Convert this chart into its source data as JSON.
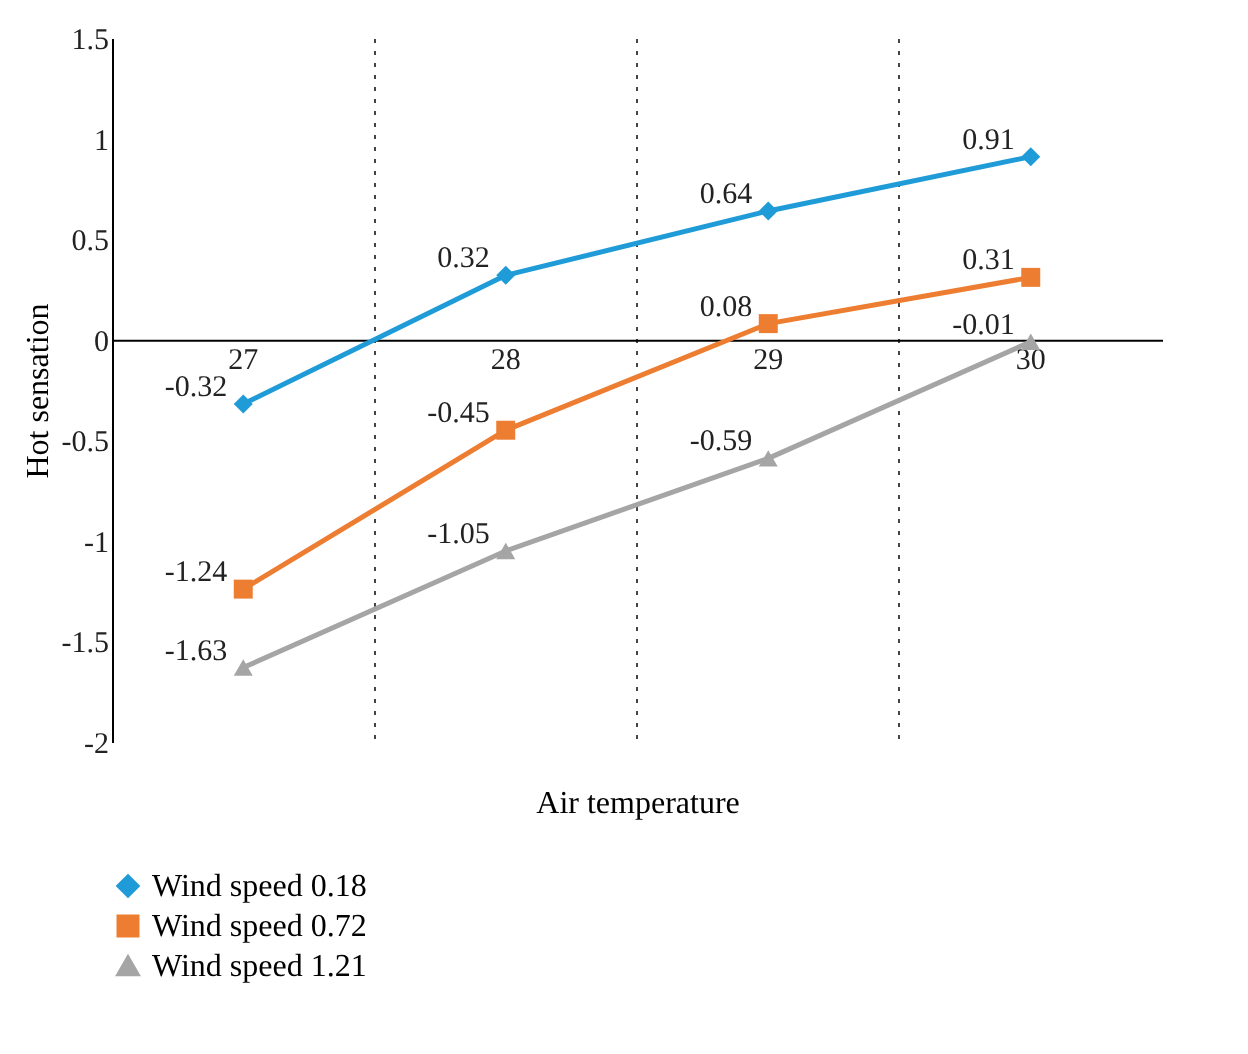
{
  "chart_data": {
    "type": "line",
    "xlabel": "Air temperature",
    "ylabel": "Hot sensation",
    "categories": [
      "27",
      "28",
      "29",
      "30"
    ],
    "series": [
      {
        "name": "Wind speed 0.18",
        "color": "#1f9bd7",
        "marker": "diamond",
        "values": [
          -0.32,
          0.32,
          0.64,
          0.91
        ]
      },
      {
        "name": "Wind speed 0.72",
        "color": "#ed7d31",
        "marker": "square",
        "values": [
          -1.24,
          -0.45,
          0.08,
          0.31
        ]
      },
      {
        "name": "Wind speed 1.21",
        "color": "#a5a5a5",
        "marker": "triangle",
        "values": [
          -1.63,
          -1.05,
          -0.59,
          -0.01
        ]
      }
    ],
    "ylim": [
      -2,
      1.5
    ],
    "yticks": [
      -2,
      -1.5,
      -1,
      -0.5,
      0,
      0.5,
      1,
      1.5
    ],
    "grid": "x",
    "legend": "bottom left",
    "data_labels": true
  }
}
